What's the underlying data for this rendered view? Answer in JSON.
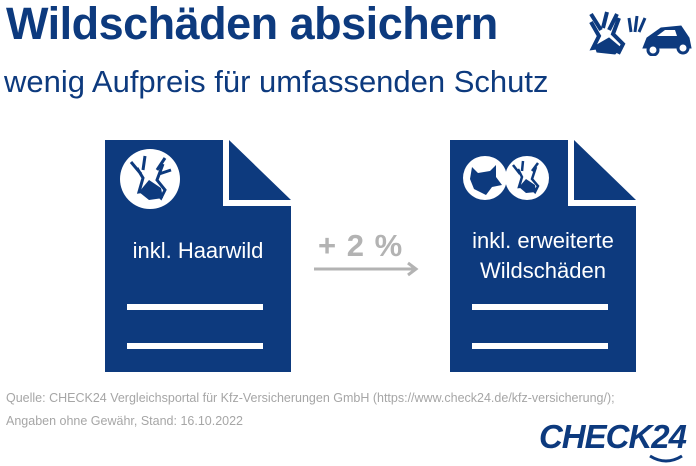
{
  "header": {
    "title": "Wildschäden absichern",
    "subtitle": "wenig Aufpreis für umfassenden Schutz",
    "icon": "deer-car-collision-icon"
  },
  "left_document": {
    "label": "inkl. Haarwild",
    "icons": [
      "deer-icon"
    ]
  },
  "comparison": {
    "label": "+ 2 %",
    "icon": "arrow-right-icon"
  },
  "right_document": {
    "label_line1": "inkl. erweiterte",
    "label_line2": "Wildschäden",
    "icons": [
      "wolf-icon",
      "deer-icon"
    ]
  },
  "footer": {
    "source": "Quelle: CHECK24 Vergleichsportal für Kfz-Versicherungen GmbH (https://www.check24.de/kfz-versicherung/);",
    "disclaimer": "Angaben ohne Gewähr, Stand: 16.10.2022",
    "logo": "CHECK24"
  },
  "colors": {
    "navy": "#0d3a7e",
    "gray": "#b3b3b3",
    "footer_gray": "#a6a6a6"
  }
}
